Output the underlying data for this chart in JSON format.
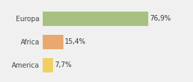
{
  "categories": [
    "Europa",
    "Africa",
    "America"
  ],
  "values": [
    76.9,
    15.4,
    7.7
  ],
  "labels": [
    "76,9%",
    "15,4%",
    "7,7%"
  ],
  "bar_colors": [
    "#a8c080",
    "#e8a870",
    "#f0d060"
  ],
  "background_color": "#f0f0f0",
  "xlim": [
    0,
    105
  ],
  "bar_height": 0.6,
  "label_fontsize": 7.0,
  "tick_fontsize": 7.0
}
